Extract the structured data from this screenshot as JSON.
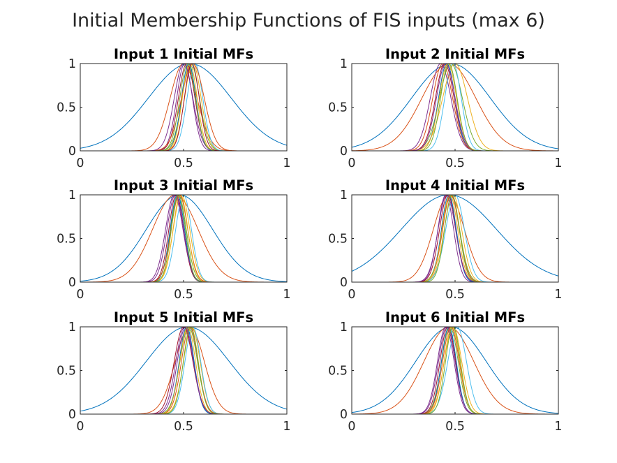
{
  "figure": {
    "title": "Initial Membership Functions of FIS inputs (max 6)"
  },
  "colors": [
    "#0072BD",
    "#D95319",
    "#EDB120",
    "#7E2F8E",
    "#77AC30",
    "#4DBEEE",
    "#A2142F"
  ],
  "chart_data": [
    {
      "type": "line",
      "title": "Input 1 Initial MFs",
      "xlim": [
        0,
        1
      ],
      "ylim": [
        0,
        1
      ],
      "xticks": [
        "0",
        "0.5",
        "1"
      ],
      "yticks": [
        "0",
        "0.5",
        "1"
      ],
      "series": [
        {
          "shape": "gaussmf",
          "center": 0.53,
          "sigma": 0.2,
          "color": "#0072BD"
        },
        {
          "shape": "gaussmf",
          "center": 0.5,
          "sigma": 0.065,
          "color": "#D95319"
        },
        {
          "shape": "gaussmf",
          "center": 0.545,
          "sigma": 0.04,
          "color": "#EDB120"
        },
        {
          "shape": "gaussmf",
          "center": 0.505,
          "sigma": 0.038,
          "color": "#7E2F8E"
        },
        {
          "shape": "gaussmf",
          "center": 0.535,
          "sigma": 0.042,
          "color": "#77AC30"
        },
        {
          "shape": "gaussmf",
          "center": 0.555,
          "sigma": 0.038,
          "color": "#4DBEEE"
        },
        {
          "shape": "gaussmf",
          "center": 0.515,
          "sigma": 0.04,
          "color": "#A2142F"
        },
        {
          "shape": "gaussmf",
          "center": 0.525,
          "sigma": 0.035,
          "color": "#0072BD"
        },
        {
          "shape": "gaussmf",
          "center": 0.545,
          "sigma": 0.055,
          "color": "#D95319"
        },
        {
          "shape": "gaussmf",
          "center": 0.53,
          "sigma": 0.036,
          "color": "#EDB120"
        },
        {
          "shape": "gaussmf",
          "center": 0.5,
          "sigma": 0.045,
          "color": "#7E2F8E"
        },
        {
          "shape": "gaussmf",
          "center": 0.52,
          "sigma": 0.038,
          "color": "#77AC30"
        },
        {
          "shape": "gaussmf",
          "center": 0.54,
          "sigma": 0.036,
          "color": "#A2142F"
        }
      ]
    },
    {
      "type": "line",
      "title": "Input 2 Initial MFs",
      "xlim": [
        0,
        1
      ],
      "ylim": [
        0,
        1
      ],
      "xticks": [
        "0",
        "0.5",
        "1"
      ],
      "yticks": [
        "0",
        "0.5",
        "1"
      ],
      "series": [
        {
          "shape": "gaussmf",
          "center": 0.48,
          "sigma": 0.19,
          "color": "#0072BD"
        },
        {
          "shape": "gaussmf",
          "center": 0.47,
          "sigma": 0.13,
          "color": "#D95319"
        },
        {
          "shape": "gaussmf",
          "center": 0.5,
          "sigma": 0.06,
          "color": "#EDB120"
        },
        {
          "shape": "gaussmf",
          "center": 0.43,
          "sigma": 0.05,
          "color": "#7E2F8E"
        },
        {
          "shape": "gaussmf",
          "center": 0.48,
          "sigma": 0.055,
          "color": "#77AC30"
        },
        {
          "shape": "gaussmf",
          "center": 0.49,
          "sigma": 0.04,
          "color": "#4DBEEE"
        },
        {
          "shape": "gaussmf",
          "center": 0.45,
          "sigma": 0.045,
          "color": "#A2142F"
        },
        {
          "shape": "gaussmf",
          "center": 0.46,
          "sigma": 0.04,
          "color": "#0072BD"
        },
        {
          "shape": "gaussmf",
          "center": 0.44,
          "sigma": 0.048,
          "color": "#D95319"
        },
        {
          "shape": "gaussmf",
          "center": 0.465,
          "sigma": 0.042,
          "color": "#EDB120"
        },
        {
          "shape": "gaussmf",
          "center": 0.455,
          "sigma": 0.045,
          "color": "#7E2F8E"
        },
        {
          "shape": "gaussmf",
          "center": 0.47,
          "sigma": 0.04,
          "color": "#77AC30"
        }
      ]
    },
    {
      "type": "line",
      "title": "Input 3 Initial MFs",
      "xlim": [
        0,
        1
      ],
      "ylim": [
        0,
        1
      ],
      "xticks": [
        "0",
        "0.5",
        "1"
      ],
      "yticks": [
        "0",
        "0.5",
        "1"
      ],
      "series": [
        {
          "shape": "gaussmf",
          "center": 0.48,
          "sigma": 0.16,
          "color": "#0072BD"
        },
        {
          "shape": "gaussmf",
          "center": 0.46,
          "sigma": 0.11,
          "color": "#D95319"
        },
        {
          "shape": "gaussmf",
          "center": 0.49,
          "sigma": 0.04,
          "color": "#EDB120"
        },
        {
          "shape": "gaussmf",
          "center": 0.455,
          "sigma": 0.042,
          "color": "#7E2F8E"
        },
        {
          "shape": "gaussmf",
          "center": 0.475,
          "sigma": 0.038,
          "color": "#77AC30"
        },
        {
          "shape": "gaussmf",
          "center": 0.5,
          "sigma": 0.038,
          "color": "#4DBEEE"
        },
        {
          "shape": "gaussmf",
          "center": 0.465,
          "sigma": 0.036,
          "color": "#A2142F"
        },
        {
          "shape": "gaussmf",
          "center": 0.47,
          "sigma": 0.035,
          "color": "#0072BD"
        },
        {
          "shape": "gaussmf",
          "center": 0.48,
          "sigma": 0.04,
          "color": "#D95319"
        },
        {
          "shape": "gaussmf",
          "center": 0.485,
          "sigma": 0.036,
          "color": "#EDB120"
        },
        {
          "shape": "gaussmf",
          "center": 0.46,
          "sigma": 0.04,
          "color": "#7E2F8E"
        },
        {
          "shape": "gaussmf",
          "center": 0.475,
          "sigma": 0.034,
          "color": "#77AC30"
        }
      ]
    },
    {
      "type": "line",
      "title": "Input 4 Initial MFs",
      "xlim": [
        0,
        1
      ],
      "ylim": [
        0,
        1
      ],
      "xticks": [
        "0",
        "0.5",
        "1"
      ],
      "yticks": [
        "0",
        "0.5",
        "1"
      ],
      "series": [
        {
          "shape": "gaussmf",
          "center": 0.47,
          "sigma": 0.23,
          "color": "#0072BD"
        },
        {
          "shape": "gaussmf",
          "center": 0.47,
          "sigma": 0.075,
          "color": "#D95319"
        },
        {
          "shape": "gaussmf",
          "center": 0.49,
          "sigma": 0.042,
          "color": "#EDB120"
        },
        {
          "shape": "gaussmf",
          "center": 0.455,
          "sigma": 0.038,
          "color": "#7E2F8E"
        },
        {
          "shape": "gaussmf",
          "center": 0.48,
          "sigma": 0.042,
          "color": "#77AC30"
        },
        {
          "shape": "gaussmf",
          "center": 0.5,
          "sigma": 0.045,
          "color": "#4DBEEE"
        },
        {
          "shape": "gaussmf",
          "center": 0.465,
          "sigma": 0.04,
          "color": "#A2142F"
        },
        {
          "shape": "gaussmf",
          "center": 0.47,
          "sigma": 0.036,
          "color": "#0072BD"
        },
        {
          "shape": "gaussmf",
          "center": 0.48,
          "sigma": 0.04,
          "color": "#D95319"
        },
        {
          "shape": "gaussmf",
          "center": 0.475,
          "sigma": 0.038,
          "color": "#EDB120"
        },
        {
          "shape": "gaussmf",
          "center": 0.46,
          "sigma": 0.042,
          "color": "#7E2F8E"
        },
        {
          "shape": "gaussmf",
          "center": 0.485,
          "sigma": 0.036,
          "color": "#77AC30"
        }
      ]
    },
    {
      "type": "line",
      "title": "Input 5 Initial MFs",
      "xlim": [
        0,
        1
      ],
      "ylim": [
        0,
        1
      ],
      "xticks": [
        "0",
        "0.5",
        "1"
      ],
      "yticks": [
        "0",
        "0.5",
        "1"
      ],
      "series": [
        {
          "shape": "gaussmf",
          "center": 0.52,
          "sigma": 0.2,
          "color": "#0072BD"
        },
        {
          "shape": "gaussmf",
          "center": 0.53,
          "sigma": 0.07,
          "color": "#D95319"
        },
        {
          "shape": "gaussmf",
          "center": 0.54,
          "sigma": 0.04,
          "color": "#EDB120"
        },
        {
          "shape": "gaussmf",
          "center": 0.51,
          "sigma": 0.04,
          "color": "#7E2F8E"
        },
        {
          "shape": "gaussmf",
          "center": 0.525,
          "sigma": 0.042,
          "color": "#77AC30"
        },
        {
          "shape": "gaussmf",
          "center": 0.545,
          "sigma": 0.038,
          "color": "#4DBEEE"
        },
        {
          "shape": "gaussmf",
          "center": 0.5,
          "sigma": 0.045,
          "color": "#A2142F"
        },
        {
          "shape": "gaussmf",
          "center": 0.515,
          "sigma": 0.036,
          "color": "#0072BD"
        },
        {
          "shape": "gaussmf",
          "center": 0.53,
          "sigma": 0.04,
          "color": "#D95319"
        },
        {
          "shape": "gaussmf",
          "center": 0.52,
          "sigma": 0.038,
          "color": "#EDB120"
        },
        {
          "shape": "gaussmf",
          "center": 0.505,
          "sigma": 0.042,
          "color": "#7E2F8E"
        },
        {
          "shape": "gaussmf",
          "center": 0.535,
          "sigma": 0.036,
          "color": "#77AC30"
        }
      ]
    },
    {
      "type": "line",
      "title": "Input 6 Initial MFs",
      "xlim": [
        0,
        1
      ],
      "ylim": [
        0,
        1
      ],
      "xticks": [
        "0",
        "0.5",
        "1"
      ],
      "yticks": [
        "0",
        "0.5",
        "1"
      ],
      "series": [
        {
          "shape": "gaussmf",
          "center": 0.48,
          "sigma": 0.17,
          "color": "#0072BD"
        },
        {
          "shape": "gaussmf",
          "center": 0.47,
          "sigma": 0.12,
          "color": "#D95319"
        },
        {
          "shape": "gaussmf",
          "center": 0.49,
          "sigma": 0.042,
          "color": "#EDB120"
        },
        {
          "shape": "gaussmf",
          "center": 0.455,
          "sigma": 0.04,
          "color": "#7E2F8E"
        },
        {
          "shape": "gaussmf",
          "center": 0.475,
          "sigma": 0.04,
          "color": "#77AC30"
        },
        {
          "shape": "gaussmf",
          "center": 0.51,
          "sigma": 0.045,
          "color": "#4DBEEE"
        },
        {
          "shape": "gaussmf",
          "center": 0.465,
          "sigma": 0.038,
          "color": "#A2142F"
        },
        {
          "shape": "gaussmf",
          "center": 0.47,
          "sigma": 0.036,
          "color": "#0072BD"
        },
        {
          "shape": "gaussmf",
          "center": 0.48,
          "sigma": 0.04,
          "color": "#D95319"
        },
        {
          "shape": "gaussmf",
          "center": 0.485,
          "sigma": 0.038,
          "color": "#EDB120"
        },
        {
          "shape": "gaussmf",
          "center": 0.46,
          "sigma": 0.04,
          "color": "#7E2F8E"
        },
        {
          "shape": "gaussmf",
          "center": 0.49,
          "sigma": 0.036,
          "color": "#77AC30"
        }
      ]
    }
  ]
}
